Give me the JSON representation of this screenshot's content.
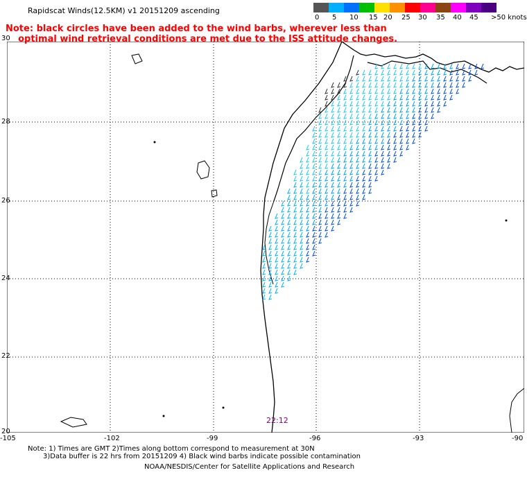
{
  "title": "Rapidscat Winds(12.5KM) v1 20151209 ascending",
  "note_line1": "Note: black circles have been added to the wind barbs, wherever less than",
  "note_line2": "optimal wind retrieval conditions are met due to the ISS attitude changes.",
  "colorbar": {
    "colors": [
      "#555555",
      "#00b0ff",
      "#0070ff",
      "#00c000",
      "#ffe000",
      "#ff9000",
      "#ff0000",
      "#ff0090",
      "#8b4513",
      "#ff00ff",
      "#8000c0",
      "#4b0082"
    ],
    "labels": [
      "0",
      "5",
      "10",
      "15",
      "20",
      "25",
      "30",
      "35",
      "40",
      "45",
      ">50 knots"
    ]
  },
  "lat_labels": [
    "30",
    "28",
    "26",
    "24",
    "22",
    "20"
  ],
  "lon_labels": [
    "-105",
    "-102",
    "-99",
    "-96",
    "-93",
    "-90"
  ],
  "pass_time": "22:12",
  "footnote_line1": "Note: 1) Times are GMT 2)Times along bottom correspond to measurement at 30N",
  "footnote_line2": "3)Data buffer is 22 hrs from 20151209 4) Black wind barbs indicate possible contamination",
  "credits": "NOAA/NESDIS/Center for Satellite Applications and Research"
}
